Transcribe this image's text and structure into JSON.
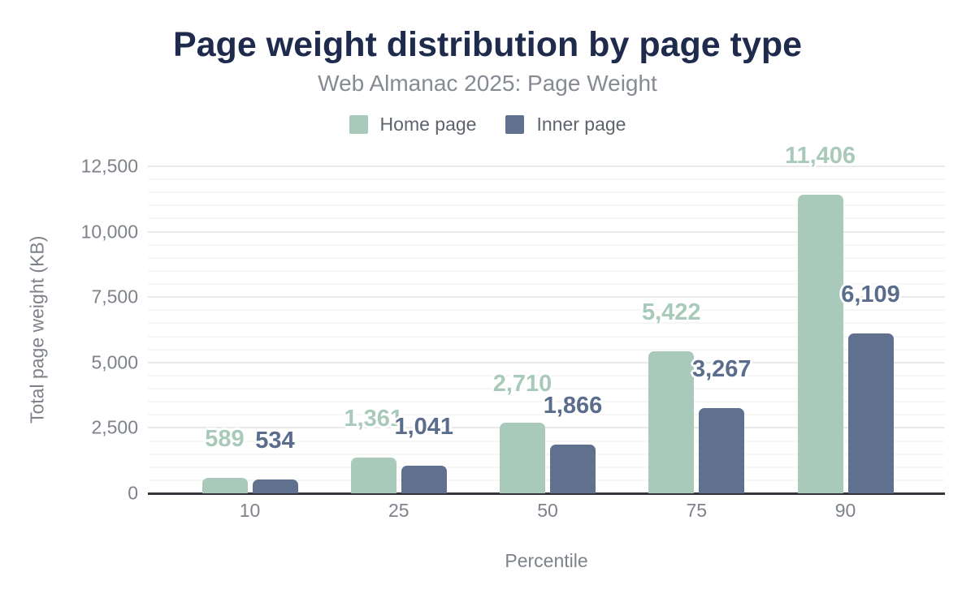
{
  "header": {
    "title": "Page weight distribution by page type",
    "subtitle": "Web Almanac 2025: Page Weight"
  },
  "chart_data": {
    "type": "bar",
    "title": "Page weight distribution by page type",
    "subtitle": "Web Almanac 2025: Page Weight",
    "xlabel": "Percentile",
    "ylabel": "Total page weight (KB)",
    "categories": [
      "10",
      "25",
      "50",
      "75",
      "90"
    ],
    "series": [
      {
        "name": "Home page",
        "color": "#a9caba",
        "label_color": "#a9caba",
        "values": [
          589,
          1361,
          2710,
          5422,
          11406
        ]
      },
      {
        "name": "Inner page",
        "color": "#5f718e",
        "label_color": "#5b6d8d",
        "values": [
          534,
          1041,
          1866,
          3267,
          6109
        ]
      }
    ],
    "y_ticks": [
      0,
      2500,
      5000,
      7500,
      10000,
      12500
    ],
    "ylim": [
      0,
      12500
    ],
    "minor_grid_step": 500,
    "grid": true,
    "legend_position": "top",
    "colors": {
      "title": "#1f2b4d",
      "subtitle": "#868b93",
      "axis_text": "#7d828b",
      "legend_text": "#5e646d",
      "axis_line": "#33373c",
      "major_grid": "#e9e9e9",
      "minor_grid": "#f6f6f6"
    }
  }
}
